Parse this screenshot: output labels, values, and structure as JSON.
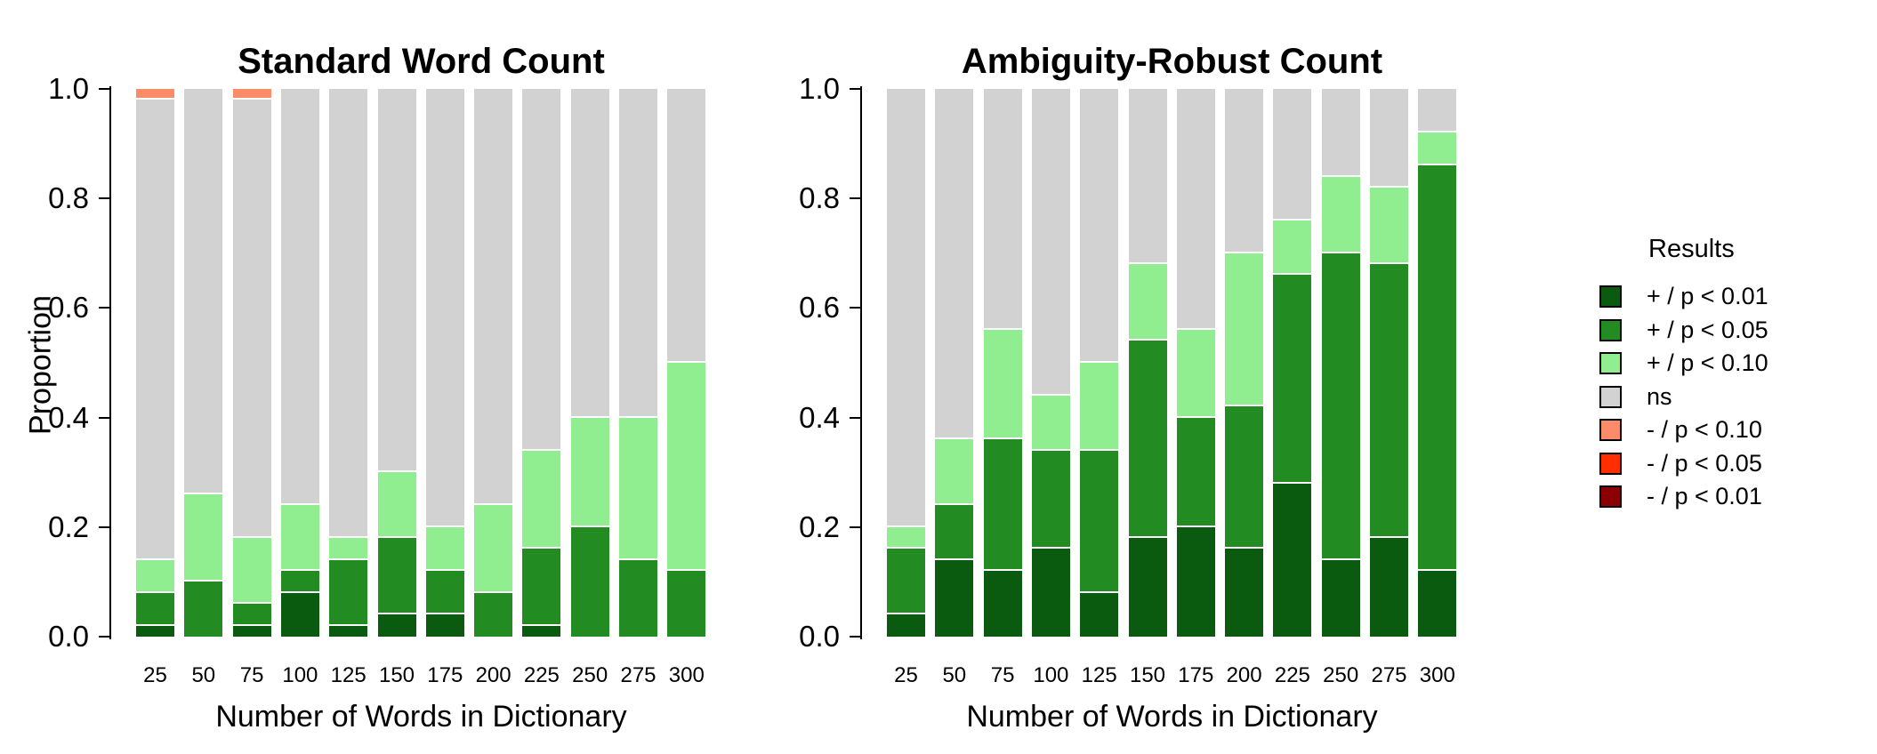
{
  "page": {
    "background": "#ffffff"
  },
  "legend": {
    "title": "Results",
    "items": [
      {
        "label": "+ / p < 0.01",
        "color": "#0A5A10"
      },
      {
        "label": "+ / p < 0.05",
        "color": "#228B22"
      },
      {
        "label": "+ / p < 0.10",
        "color": "#90EE90"
      },
      {
        "label": "ns",
        "color": "#D2D2D2"
      },
      {
        "label": "- / p < 0.10",
        "color": "#FA8C69"
      },
      {
        "label": "- / p < 0.05",
        "color": "#FF2E00"
      },
      {
        "label": "- / p < 0.01",
        "color": "#8B0000"
      }
    ]
  },
  "chart_data": [
    {
      "type": "bar",
      "stacked": true,
      "title": "Standard Word Count",
      "xlabel": "Number of Words in Dictionary",
      "ylabel": "Proportion",
      "ylim": [
        0,
        1
      ],
      "yticks": [
        0.0,
        0.2,
        0.4,
        0.6,
        0.8,
        1.0
      ],
      "ytick_labels": [
        "0.0",
        "0.2",
        "0.4",
        "0.6",
        "0.8",
        "1.0"
      ],
      "grid": false,
      "legend_position": "right-outside",
      "categories": [
        "25",
        "50",
        "75",
        "100",
        "125",
        "150",
        "175",
        "200",
        "225",
        "250",
        "275",
        "300"
      ],
      "series": [
        {
          "name": "+ / p < 0.01",
          "color": "#0A5A10",
          "values": [
            0.02,
            0.0,
            0.02,
            0.08,
            0.02,
            0.04,
            0.04,
            0.0,
            0.02,
            0.0,
            0.0,
            0.0
          ]
        },
        {
          "name": "+ / p < 0.05",
          "color": "#228B22",
          "values": [
            0.06,
            0.1,
            0.04,
            0.04,
            0.12,
            0.14,
            0.08,
            0.08,
            0.14,
            0.2,
            0.14,
            0.12
          ]
        },
        {
          "name": "+ / p < 0.10",
          "color": "#90EE90",
          "values": [
            0.06,
            0.16,
            0.12,
            0.12,
            0.04,
            0.12,
            0.08,
            0.16,
            0.18,
            0.2,
            0.26,
            0.38
          ]
        },
        {
          "name": "ns",
          "color": "#D2D2D2",
          "values": [
            0.84,
            0.74,
            0.8,
            0.76,
            0.82,
            0.7,
            0.8,
            0.76,
            0.66,
            0.6,
            0.6,
            0.5
          ]
        },
        {
          "name": "- / p < 0.10",
          "color": "#FA8C69",
          "values": [
            0.02,
            0.0,
            0.02,
            0.0,
            0.0,
            0.0,
            0.0,
            0.0,
            0.0,
            0.0,
            0.0,
            0.0
          ]
        },
        {
          "name": "- / p < 0.05",
          "color": "#FF2E00",
          "values": [
            0.0,
            0.0,
            0.0,
            0.0,
            0.0,
            0.0,
            0.0,
            0.0,
            0.0,
            0.0,
            0.0,
            0.0
          ]
        },
        {
          "name": "- / p < 0.01",
          "color": "#8B0000",
          "values": [
            0.0,
            0.0,
            0.0,
            0.0,
            0.0,
            0.0,
            0.0,
            0.0,
            0.0,
            0.0,
            0.0,
            0.0
          ]
        }
      ]
    },
    {
      "type": "bar",
      "stacked": true,
      "title": "Ambiguity-Robust Count",
      "xlabel": "Number of Words in Dictionary",
      "ylabel": "",
      "ylim": [
        0,
        1
      ],
      "yticks": [
        0.0,
        0.2,
        0.4,
        0.6,
        0.8,
        1.0
      ],
      "ytick_labels": [
        "0.0",
        "0.2",
        "0.4",
        "0.6",
        "0.8",
        "1.0"
      ],
      "grid": false,
      "categories": [
        "25",
        "50",
        "75",
        "100",
        "125",
        "150",
        "175",
        "200",
        "225",
        "250",
        "275",
        "300"
      ],
      "series": [
        {
          "name": "+ / p < 0.01",
          "color": "#0A5A10",
          "values": [
            0.04,
            0.14,
            0.12,
            0.16,
            0.08,
            0.18,
            0.2,
            0.16,
            0.28,
            0.14,
            0.18,
            0.12
          ]
        },
        {
          "name": "+ / p < 0.05",
          "color": "#228B22",
          "values": [
            0.12,
            0.1,
            0.24,
            0.18,
            0.26,
            0.36,
            0.2,
            0.26,
            0.38,
            0.56,
            0.5,
            0.74
          ]
        },
        {
          "name": "+ / p < 0.10",
          "color": "#90EE90",
          "values": [
            0.04,
            0.12,
            0.2,
            0.1,
            0.16,
            0.14,
            0.16,
            0.28,
            0.1,
            0.14,
            0.14,
            0.06
          ]
        },
        {
          "name": "ns",
          "color": "#D2D2D2",
          "values": [
            0.8,
            0.64,
            0.44,
            0.56,
            0.5,
            0.32,
            0.44,
            0.3,
            0.24,
            0.16,
            0.18,
            0.08
          ]
        },
        {
          "name": "- / p < 0.10",
          "color": "#FA8C69",
          "values": [
            0.0,
            0.0,
            0.0,
            0.0,
            0.0,
            0.0,
            0.0,
            0.0,
            0.0,
            0.0,
            0.0,
            0.0
          ]
        },
        {
          "name": "- / p < 0.05",
          "color": "#FF2E00",
          "values": [
            0.0,
            0.0,
            0.0,
            0.0,
            0.0,
            0.0,
            0.0,
            0.0,
            0.0,
            0.0,
            0.0,
            0.0
          ]
        },
        {
          "name": "- / p < 0.01",
          "color": "#8B0000",
          "values": [
            0.0,
            0.0,
            0.0,
            0.0,
            0.0,
            0.0,
            0.0,
            0.0,
            0.0,
            0.0,
            0.0,
            0.0
          ]
        }
      ]
    }
  ]
}
